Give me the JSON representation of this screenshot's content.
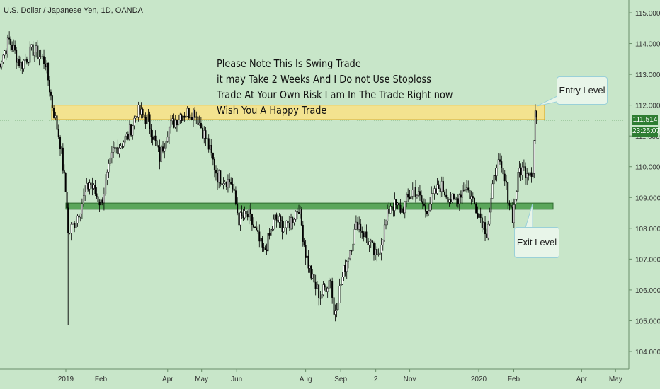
{
  "header": {
    "symbol": "U.S. Dollar / Japanese Yen, 1D, OANDA"
  },
  "annotation_lines": [
    "Please Note This Is Swing Trade",
    "it may Take 2 Weeks And I Do not Use Stoploss",
    "Trade At Your Own Risk I am In The Trade Right now",
    "Wish You A Happy Trade"
  ],
  "callouts": {
    "entry": "Entry Level",
    "exit": "Exit Level"
  },
  "current": {
    "price": "111.514",
    "countdown": "23:25:07"
  },
  "colors": {
    "background": "#c8e6c9",
    "up": "#ffffff",
    "down": "#000000",
    "entry_zone": "#f3e38f",
    "exit_zone": "#5aa65a",
    "price_tag": "#2e7d32",
    "callout_border": "#9ad0d8"
  },
  "chart_data": {
    "type": "candlestick",
    "title": "U.S. Dollar / Japanese Yen, 1D, OANDA",
    "xlabel": "",
    "ylabel": "",
    "ylim": [
      103.7,
      115.3
    ],
    "yticks": [
      "104.000",
      "105.000",
      "106.000",
      "107.000",
      "108.000",
      "109.000",
      "110.000",
      "111.000",
      "112.000",
      "113.000",
      "114.000",
      "115.000"
    ],
    "xticks": [
      {
        "label": "2019",
        "date": "2019-01-01"
      },
      {
        "label": "Feb",
        "date": "2019-02-01"
      },
      {
        "label": "Apr",
        "date": "2019-04-01"
      },
      {
        "label": "May",
        "date": "2019-05-01"
      },
      {
        "label": "Jun",
        "date": "2019-06-01"
      },
      {
        "label": "Aug",
        "date": "2019-08-01"
      },
      {
        "label": "Sep",
        "date": "2019-09-01"
      },
      {
        "label": "2",
        "date": "2019-10-02"
      },
      {
        "label": "Nov",
        "date": "2019-11-01"
      },
      {
        "label": "2020",
        "date": "2020-01-01"
      },
      {
        "label": "Feb",
        "date": "2020-02-01"
      },
      {
        "label": "Apr",
        "date": "2020-04-01"
      },
      {
        "label": "May",
        "date": "2020-05-01"
      }
    ],
    "entry_zone": {
      "low": 111.53,
      "high": 112.0
    },
    "exit_zone": {
      "low": 108.62,
      "high": 108.82
    },
    "last_price": 111.514,
    "series_path": [
      [
        "2018-11-01",
        113.2
      ],
      [
        "2018-11-12",
        114.1
      ],
      [
        "2018-11-22",
        113.3
      ],
      [
        "2018-12-03",
        113.8
      ],
      [
        "2018-12-14",
        113.4
      ],
      [
        "2018-12-20",
        112.0
      ],
      [
        "2018-12-27",
        110.8
      ],
      [
        "2019-01-02",
        108.8
      ],
      [
        "2019-01-03",
        107.8
      ],
      [
        "2019-01-10",
        108.3
      ],
      [
        "2019-01-22",
        109.5
      ],
      [
        "2019-02-01",
        108.8
      ],
      [
        "2019-02-12",
        110.5
      ],
      [
        "2019-02-25",
        111.0
      ],
      [
        "2019-03-05",
        111.8
      ],
      [
        "2019-03-15",
        111.5
      ],
      [
        "2019-03-25",
        110.3
      ],
      [
        "2019-04-01",
        111.2
      ],
      [
        "2019-04-12",
        111.7
      ],
      [
        "2019-04-25",
        111.8
      ],
      [
        "2019-05-06",
        110.8
      ],
      [
        "2019-05-15",
        109.7
      ],
      [
        "2019-05-27",
        109.5
      ],
      [
        "2019-06-03",
        108.3
      ],
      [
        "2019-06-12",
        108.4
      ],
      [
        "2019-06-25",
        107.2
      ],
      [
        "2019-07-05",
        108.3
      ],
      [
        "2019-07-15",
        108.0
      ],
      [
        "2019-07-26",
        108.7
      ],
      [
        "2019-08-01",
        107.2
      ],
      [
        "2019-08-07",
        106.3
      ],
      [
        "2019-08-14",
        105.8
      ],
      [
        "2019-08-23",
        106.4
      ],
      [
        "2019-08-26",
        105.2
      ],
      [
        "2019-09-05",
        106.8
      ],
      [
        "2019-09-16",
        108.2
      ],
      [
        "2019-09-25",
        107.6
      ],
      [
        "2019-10-03",
        107.0
      ],
      [
        "2019-10-15",
        108.8
      ],
      [
        "2019-10-25",
        108.6
      ],
      [
        "2019-11-05",
        109.3
      ],
      [
        "2019-11-15",
        108.6
      ],
      [
        "2019-11-28",
        109.4
      ],
      [
        "2019-12-10",
        108.8
      ],
      [
        "2019-12-20",
        109.4
      ],
      [
        "2019-12-31",
        108.6
      ],
      [
        "2020-01-08",
        107.9
      ],
      [
        "2020-01-17",
        110.2
      ],
      [
        "2020-01-24",
        109.5
      ],
      [
        "2020-01-31",
        108.4
      ],
      [
        "2020-02-06",
        109.9
      ],
      [
        "2020-02-18",
        109.9
      ],
      [
        "2020-02-20",
        111.8
      ],
      [
        "2020-02-21",
        111.6
      ]
    ]
  }
}
